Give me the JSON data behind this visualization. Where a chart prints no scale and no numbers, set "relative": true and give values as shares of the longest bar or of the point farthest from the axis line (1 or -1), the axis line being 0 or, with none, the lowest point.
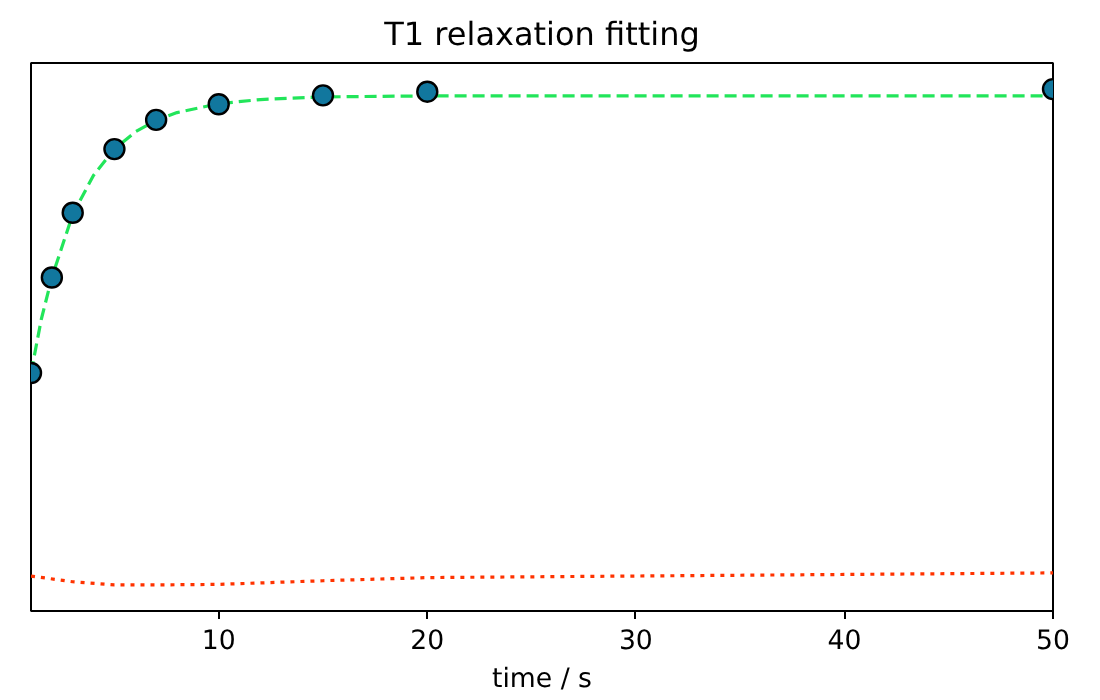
{
  "chart_data": {
    "type": "scatter",
    "title": "T1 relaxation fitting",
    "xlabel": "time / s",
    "relative": true,
    "xlim": [
      1,
      50
    ],
    "xticks": [
      10,
      20,
      30,
      40,
      50
    ],
    "grid": false,
    "series": [
      {
        "type": "line",
        "line_style": "dashed",
        "marker": "none",
        "color": "#22e55a",
        "x": [
          1,
          1.5,
          2,
          3,
          4,
          5,
          6,
          7,
          8,
          10,
          12,
          15,
          20,
          30,
          50
        ],
        "values": [
          0.456,
          0.56,
          0.639,
          0.76,
          0.835,
          0.885,
          0.918,
          0.94,
          0.955,
          0.972,
          0.98,
          0.985,
          0.987,
          0.987,
          0.987
        ]
      },
      {
        "type": "line",
        "line_style": "dotted",
        "marker": "none",
        "color": "#ff3300",
        "x": [
          1,
          3,
          5,
          7,
          10,
          15,
          20,
          30,
          40,
          50
        ],
        "values": [
          0.067,
          0.056,
          0.05,
          0.05,
          0.051,
          0.058,
          0.064,
          0.067,
          0.07,
          0.073
        ]
      },
      {
        "marker": "circle",
        "color": "#11779e",
        "x": [
          1,
          2,
          3,
          5,
          7,
          10,
          15,
          20,
          50
        ],
        "values": [
          0.456,
          0.639,
          0.763,
          0.885,
          0.941,
          0.971,
          0.988,
          0.995,
          1
        ]
      }
    ]
  }
}
